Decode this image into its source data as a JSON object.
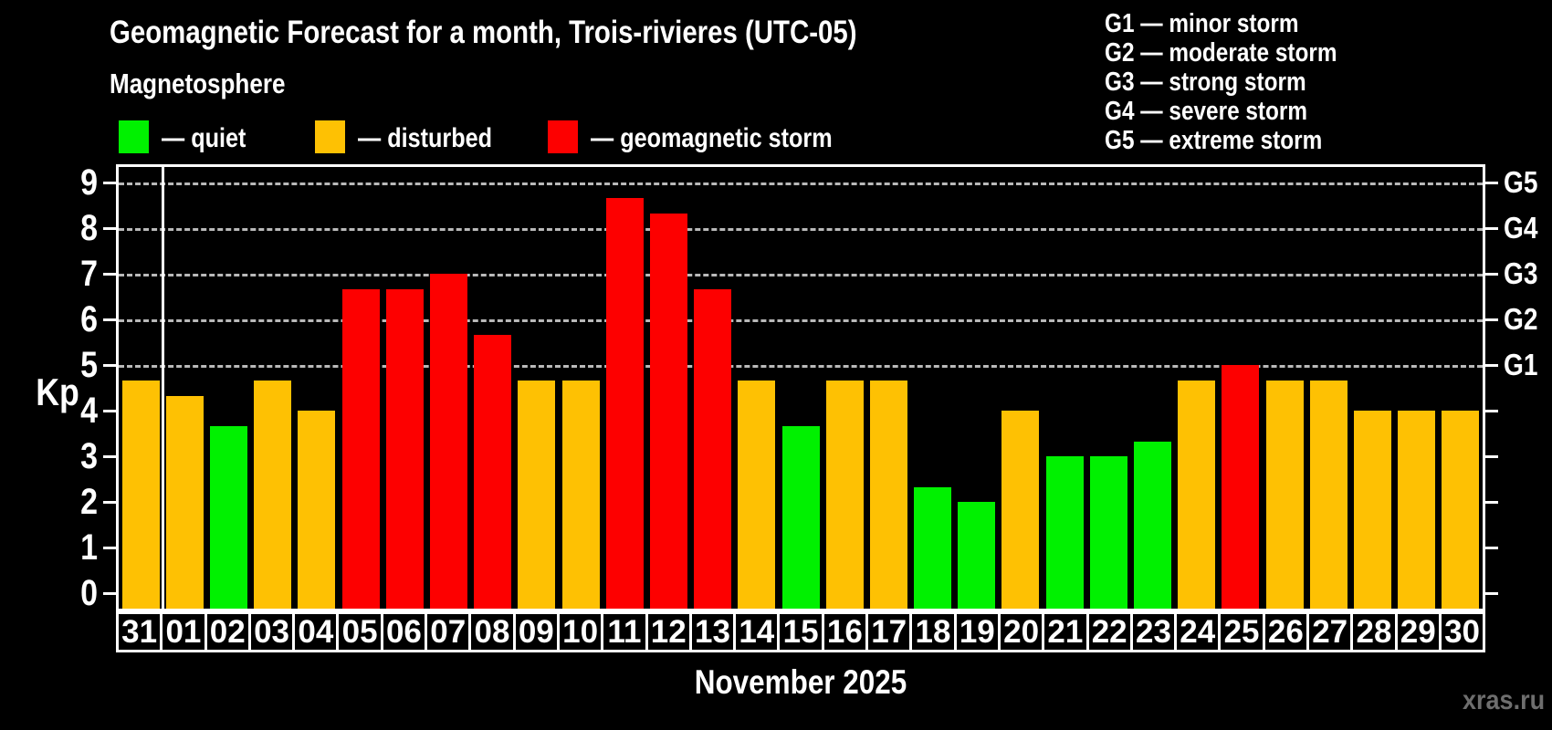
{
  "header": {
    "title": "Geomagnetic Forecast for a month, Trois-rivieres (UTC-05)",
    "subtitle": "Magnetosphere",
    "legend": [
      {
        "key": "quiet",
        "label": "— quiet",
        "color": "#00f100"
      },
      {
        "key": "disturbed",
        "label": "— disturbed",
        "color": "#fec103"
      },
      {
        "key": "storm",
        "label": "— geomagnetic storm",
        "color": "#fd0000"
      }
    ],
    "g_scale_legend": [
      "G1 — minor storm",
      "G2 — moderate storm",
      "G3 — strong storm",
      "G4 — severe storm",
      "G5 — extreme storm"
    ]
  },
  "chart_data": {
    "type": "bar",
    "title": "Geomagnetic Forecast for a month, Trois-rivieres (UTC-05)",
    "subtitle": "Magnetosphere",
    "xlabel": "November 2025",
    "ylabel": "Kp",
    "ylim": [
      0,
      9.4
    ],
    "yticks": [
      0,
      1,
      2,
      3,
      4,
      5,
      6,
      7,
      8,
      9
    ],
    "gridlines_at": [
      5,
      6,
      7,
      8,
      9
    ],
    "grid": "dashed horizontal lines at Kp 5-9 only",
    "legend_position": "top-left",
    "categories": [
      "31",
      "01",
      "02",
      "03",
      "04",
      "05",
      "06",
      "07",
      "08",
      "09",
      "10",
      "11",
      "12",
      "13",
      "14",
      "15",
      "16",
      "17",
      "18",
      "19",
      "20",
      "21",
      "22",
      "23",
      "24",
      "25",
      "26",
      "27",
      "28",
      "29",
      "30"
    ],
    "values": [
      4.67,
      4.33,
      3.67,
      4.67,
      4,
      6.67,
      6.67,
      7,
      5.67,
      4.67,
      4.67,
      8.67,
      8.33,
      6.67,
      4.67,
      3.67,
      4.67,
      4.67,
      2.33,
      2,
      4,
      3,
      3,
      3.33,
      4.67,
      5,
      4.67,
      4.67,
      4,
      4,
      4
    ],
    "status": [
      "disturbed",
      "disturbed",
      "quiet",
      "disturbed",
      "disturbed",
      "storm",
      "storm",
      "storm",
      "storm",
      "disturbed",
      "disturbed",
      "storm",
      "storm",
      "storm",
      "disturbed",
      "quiet",
      "disturbed",
      "disturbed",
      "quiet",
      "quiet",
      "disturbed",
      "quiet",
      "quiet",
      "quiet",
      "disturbed",
      "storm",
      "disturbed",
      "disturbed",
      "disturbed",
      "disturbed",
      "disturbed"
    ],
    "colors": {
      "quiet": "#00f100",
      "disturbed": "#fec103",
      "storm": "#fd0000"
    },
    "right_axis": [
      {
        "kp": 5,
        "label": "G1"
      },
      {
        "kp": 6,
        "label": "G2"
      },
      {
        "kp": 7,
        "label": "G3"
      },
      {
        "kp": 8,
        "label": "G4"
      },
      {
        "kp": 9,
        "label": "G5"
      }
    ],
    "month_boundary_index": 1
  },
  "footer": {
    "xaxis_title": "November 2025",
    "watermark": "xras.ru"
  }
}
